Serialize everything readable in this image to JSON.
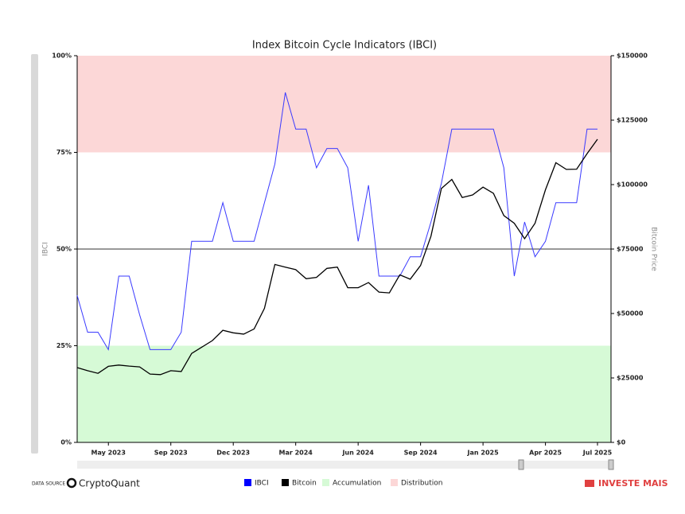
{
  "chart_data": {
    "type": "line",
    "title": "Index Bitcoin Cycle Indicators (IBCI)",
    "ylabel": "IBCI",
    "y2label": "Bitcoin Price",
    "categories": [
      null,
      null,
      null,
      "May 2023",
      null,
      null,
      null,
      null,
      null,
      "Sep 2023",
      null,
      null,
      null,
      null,
      null,
      "Dec 2023",
      null,
      null,
      null,
      null,
      null,
      "Mar 2024",
      null,
      null,
      null,
      null,
      null,
      "Jun 2024",
      null,
      null,
      null,
      null,
      null,
      "Sep 2024",
      null,
      null,
      null,
      null,
      null,
      "Jan 2025",
      null,
      null,
      null,
      null,
      null,
      "Apr 2025",
      null,
      null,
      null,
      null,
      "Jul 2025"
    ],
    "series": [
      {
        "name": "IBCI",
        "color": "#3a3aff",
        "values": [
          38,
          28.5,
          28.5,
          24,
          43,
          43,
          33,
          24,
          24,
          24,
          28.5,
          52,
          52,
          52,
          62,
          52,
          52,
          52,
          62,
          72,
          90.5,
          81,
          81,
          71,
          76,
          76,
          71,
          52,
          66.5,
          43,
          43,
          43,
          48,
          48,
          57,
          67,
          81,
          81,
          81,
          81,
          81,
          71,
          43,
          57,
          48,
          52,
          62,
          62,
          62,
          81,
          81
        ]
      },
      {
        "name": "Bitcoin",
        "color": "#000000",
        "axis": "y2",
        "values": [
          29000,
          27800,
          26800,
          29500,
          30000,
          29600,
          29300,
          26500,
          26300,
          27800,
          27500,
          34500,
          37000,
          39500,
          43500,
          42500,
          42000,
          44000,
          52000,
          69000,
          68000,
          67000,
          63500,
          64000,
          67500,
          68000,
          60000,
          60000,
          62000,
          58300,
          58000,
          65000,
          63300,
          68600,
          80000,
          98500,
          102000,
          95000,
          96000,
          99000,
          96600,
          88000,
          85000,
          79000,
          85000,
          98000,
          108500,
          105900,
          106000,
          112000,
          117600
        ]
      }
    ],
    "zones": [
      {
        "name": "Accumulation",
        "from": 0,
        "to": 25,
        "color": "#d6fad6"
      },
      {
        "name": "Distribution",
        "from": 75,
        "to": 100,
        "color": "#fcd7d7"
      }
    ],
    "reference_line": 50,
    "ylim": [
      0,
      100
    ],
    "yticks": [
      {
        "value": 0,
        "label": "0%"
      },
      {
        "value": 25,
        "label": "25%"
      },
      {
        "value": 50,
        "label": "50%"
      },
      {
        "value": 75,
        "label": "75%"
      },
      {
        "value": 100,
        "label": "100%"
      }
    ],
    "y2lim": [
      0,
      150000
    ],
    "y2ticks": [
      {
        "value": 0,
        "label": "$0"
      },
      {
        "value": 25000,
        "label": "$25000"
      },
      {
        "value": 50000,
        "label": "$50000"
      },
      {
        "value": 75000,
        "label": "$75000"
      },
      {
        "value": 100000,
        "label": "$100000"
      },
      {
        "value": 125000,
        "label": "$125000"
      },
      {
        "value": 150000,
        "label": "$150000"
      }
    ],
    "source_label": "DATA SOURCE",
    "source": "CryptoQuant",
    "brand": "INVESTE MAIS"
  }
}
